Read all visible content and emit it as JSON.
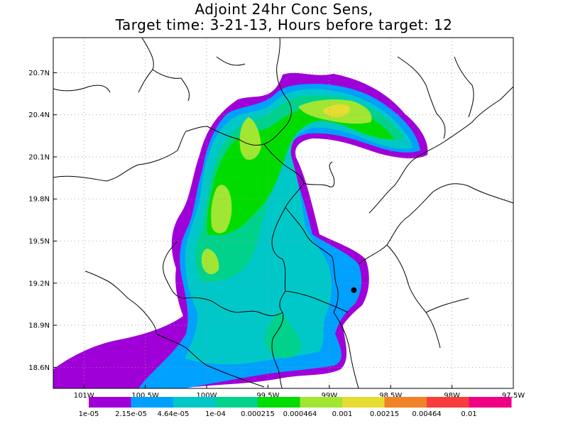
{
  "title": {
    "line1": "Adjoint 24hr Conc Sens,",
    "line2": "Target time: 3-21-13, Hours before target: 12"
  },
  "map": {
    "lat_ticks": [
      "20.7N",
      "20.4N",
      "20.1N",
      "19.8N",
      "19.5N",
      "19.2N",
      "18.9N",
      "18.6N"
    ],
    "lon_ticks": [
      "101W",
      "100.5W",
      "100W",
      "99.5W",
      "99W",
      "98.5W",
      "98W",
      "97.5W"
    ],
    "lat_range": [
      18.45,
      20.95
    ],
    "lon_range": [
      -101.25,
      -97.5
    ],
    "grid": "dotted"
  },
  "legend": {
    "labels": [
      "1e-05",
      "2.15e-05",
      "4.64e-05",
      "1e-04",
      "0.000215",
      "0.000464",
      "0.001",
      "0.00215",
      "0.00464",
      "0.01"
    ],
    "colors": [
      "#a000d8",
      "#00a0ff",
      "#00c8c8",
      "#00d28c",
      "#00dc00",
      "#a0e632",
      "#e6dc32",
      "#f08228",
      "#fa3c3c",
      "#f00082"
    ]
  },
  "marker": {
    "name": "target-site",
    "lat": 19.15,
    "lon": -98.8
  }
}
